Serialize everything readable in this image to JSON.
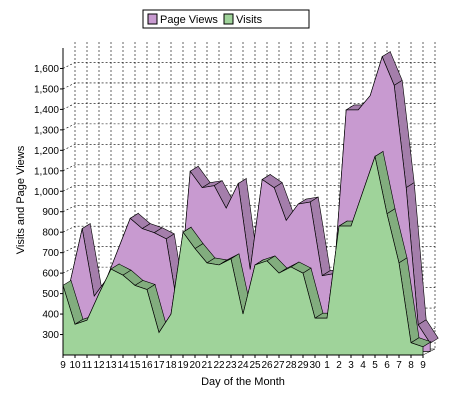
{
  "chart_data": {
    "type": "area",
    "title": "",
    "xlabel": "Day of the Month",
    "ylabel": "Visits and Page Views",
    "ylim": [
      200,
      1700
    ],
    "yticks": [
      300,
      400,
      500,
      600,
      700,
      800,
      900,
      1000,
      1100,
      1200,
      1300,
      1400,
      1500,
      1600
    ],
    "ytick_labels": [
      "300",
      "400",
      "500",
      "600",
      "700",
      "800",
      "900",
      "1,000",
      "1,100",
      "1,200",
      "1,300",
      "1,400",
      "1,500",
      "1,600"
    ],
    "categories": [
      "9",
      "10",
      "11",
      "12",
      "13",
      "14",
      "15",
      "16",
      "17",
      "18",
      "19",
      "20",
      "21",
      "22",
      "23",
      "24",
      "25",
      "26",
      "27",
      "28",
      "29",
      "30",
      "1",
      "2",
      "3",
      "4",
      "5",
      "6",
      "7",
      "8",
      "9"
    ],
    "grid": true,
    "legend_position": "top-center",
    "stacked": false,
    "three_d": true,
    "series": [
      {
        "name": "Page Views",
        "color": "#c89ad0",
        "values": [
          540,
          800,
          470,
          550,
          700,
          850,
          800,
          780,
          750,
          400,
          1080,
          1000,
          1010,
          900,
          1020,
          600,
          1040,
          1000,
          840,
          920,
          930,
          570,
          580,
          1380,
          1380,
          1450,
          1640,
          1500,
          1000,
          330,
          240
        ]
      },
      {
        "name": "Visits",
        "color": "#9fd39a",
        "values": [
          540,
          350,
          370,
          500,
          620,
          590,
          540,
          520,
          310,
          400,
          800,
          720,
          650,
          640,
          670,
          400,
          640,
          660,
          600,
          630,
          600,
          380,
          380,
          830,
          830,
          1000,
          1170,
          890,
          650,
          260,
          240
        ]
      }
    ]
  }
}
